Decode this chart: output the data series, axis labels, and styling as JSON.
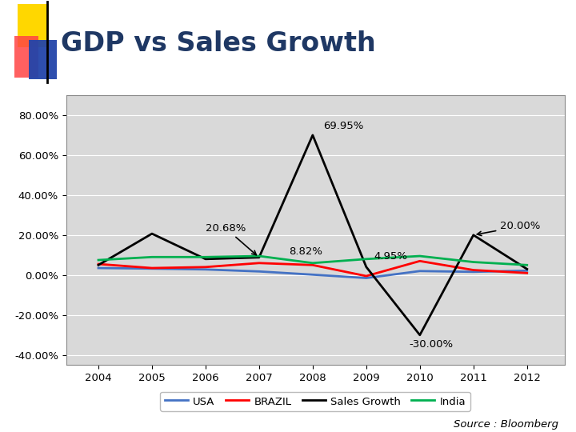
{
  "title": "GDP vs Sales Growth",
  "source": "Source : Bloomberg",
  "years": [
    2004,
    2005,
    2006,
    2007,
    2008,
    2009,
    2010,
    2011,
    2012
  ],
  "usa": [
    3.5,
    3.2,
    2.8,
    1.8,
    0.2,
    -1.5,
    2.0,
    1.6,
    2.2
  ],
  "brazil": [
    5.5,
    3.5,
    4.0,
    6.0,
    5.0,
    -0.5,
    7.0,
    2.5,
    1.0
  ],
  "sales_growth": [
    5.0,
    20.68,
    8.0,
    8.82,
    69.95,
    4.05,
    -30.0,
    20.0,
    3.0
  ],
  "india": [
    7.5,
    9.0,
    9.0,
    9.5,
    6.0,
    8.0,
    9.5,
    6.5,
    5.0
  ],
  "usa_color": "#4472C4",
  "brazil_color": "#FF0000",
  "sales_color": "#000000",
  "india_color": "#00B050",
  "plot_bg": "#D9D9D9",
  "ylim": [
    -45,
    90
  ],
  "yticks": [
    -40,
    -20,
    0,
    20,
    40,
    60,
    80
  ],
  "ytick_labels": [
    "-40.00%",
    "-20.00%",
    "0.00%",
    "20.00%",
    "40.00%",
    "60.00%",
    "80.00%"
  ],
  "title_color": "#1F3864",
  "title_fontsize": 24,
  "fig_bg": "#FFFFFF",
  "grid_color": "#FFFFFF",
  "legend_labels": [
    "USA",
    "BRAZIL",
    "Sales Growth",
    "India"
  ]
}
